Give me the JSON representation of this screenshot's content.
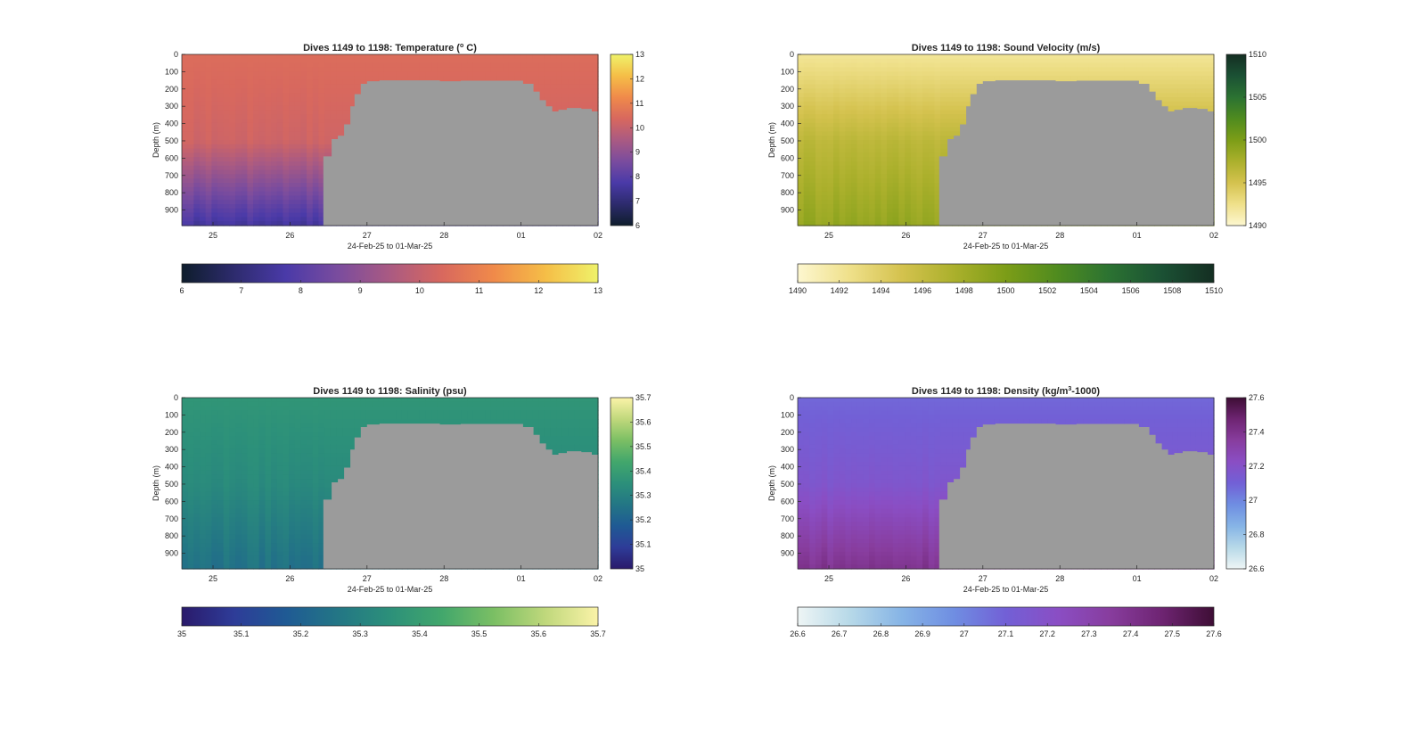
{
  "chart_data": [
    {
      "type": "heatmap",
      "title": "Dives 1149 to 1198: Temperature (°C)",
      "title_parts": [
        "Dives 1149 to 1198: Temperature (",
        "o",
        " C)"
      ],
      "xlabel": "24-Feb-25 to 01-Mar-25",
      "ylabel": "Depth (m)",
      "x_ticks": [
        "25",
        "26",
        "27",
        "28",
        "01",
        "02"
      ],
      "y_ticks": [
        "0",
        "100",
        "200",
        "300",
        "400",
        "500",
        "600",
        "700",
        "800",
        "900"
      ],
      "ylim": [
        0,
        990
      ],
      "colorbar_ticks": [
        "6",
        "7",
        "8",
        "9",
        "10",
        "11",
        "12",
        "13"
      ],
      "clim": [
        6,
        13
      ],
      "colormap": [
        "#0e1d2c",
        "#2d2b6d",
        "#4a3aa8",
        "#7a4c9e",
        "#aa5a82",
        "#d8685e",
        "#f08a4a",
        "#f5be47",
        "#eff26a"
      ],
      "values": {
        "shallow": 10.5,
        "mid": 10.2,
        "deep": 7.6
      },
      "no_data_color": "#9b9b9b"
    },
    {
      "type": "heatmap",
      "title": "Dives 1149 to 1198: Sound Velocity (m/s)",
      "title_parts": [
        "Dives 1149 to 1198: Sound Velocity (m/s)",
        "",
        ""
      ],
      "xlabel": "24-Feb-25 to 01-Mar-25",
      "ylabel": "Depth (m)",
      "x_ticks": [
        "25",
        "26",
        "27",
        "28",
        "01",
        "02"
      ],
      "y_ticks": [
        "0",
        "100",
        "200",
        "300",
        "400",
        "500",
        "600",
        "700",
        "800",
        "900"
      ],
      "ylim": [
        0,
        990
      ],
      "colorbar_ticks": [
        "1490",
        "1492",
        "1494",
        "1496",
        "1498",
        "1500",
        "1502",
        "1504",
        "1506",
        "1508",
        "1510"
      ],
      "side_colorbar_ticks": [
        "1490",
        "1495",
        "1500",
        "1505",
        "1510"
      ],
      "clim": [
        1490,
        1510
      ],
      "colormap": [
        "#fdf7d0",
        "#efe08a",
        "#d4c24e",
        "#abb02c",
        "#7c9d17",
        "#4f8b1f",
        "#2b7232",
        "#1b5134",
        "#142e22"
      ],
      "values": {
        "shallow": 1492.0,
        "mid": 1496.5,
        "deep": 1498.8
      },
      "no_data_color": "#9b9b9b"
    },
    {
      "type": "heatmap",
      "title": "Dives 1149 to 1198: Salinity (psu)",
      "title_parts": [
        "Dives 1149 to 1198: Salinity (psu)",
        "",
        ""
      ],
      "xlabel": "24-Feb-25 to 01-Mar-25",
      "ylabel": "Depth (m)",
      "x_ticks": [
        "25",
        "26",
        "27",
        "28",
        "01",
        "02"
      ],
      "y_ticks": [
        "0",
        "100",
        "200",
        "300",
        "400",
        "500",
        "600",
        "700",
        "800",
        "900"
      ],
      "ylim": [
        0,
        990
      ],
      "colorbar_ticks": [
        "35",
        "35.1",
        "35.2",
        "35.3",
        "35.4",
        "35.5",
        "35.6",
        "35.7"
      ],
      "clim": [
        35,
        35.7
      ],
      "colormap": [
        "#2a1a6b",
        "#2e3c98",
        "#1f5a94",
        "#237685",
        "#2c907a",
        "#42a76c",
        "#7bbf64",
        "#c0d87c",
        "#fbf3a8"
      ],
      "values": {
        "shallow": 35.37,
        "mid": 35.33,
        "deep": 35.25
      },
      "no_data_color": "#9b9b9b"
    },
    {
      "type": "heatmap",
      "title": "Dives 1149 to 1198: Density (kg/m³-1000)",
      "title_parts": [
        "Dives 1149 to 1198: Density (kg/m",
        "3",
        "-1000)"
      ],
      "xlabel": "24-Feb-25 to 01-Mar-25",
      "ylabel": "Depth (m)",
      "x_ticks": [
        "25",
        "26",
        "27",
        "28",
        "01",
        "02"
      ],
      "y_ticks": [
        "0",
        "100",
        "200",
        "300",
        "400",
        "500",
        "600",
        "700",
        "800",
        "900"
      ],
      "ylim": [
        0,
        990
      ],
      "colorbar_ticks": [
        "26.6",
        "26.7",
        "26.8",
        "26.9",
        "27",
        "27.1",
        "27.2",
        "27.3",
        "27.4",
        "27.5",
        "27.6"
      ],
      "side_colorbar_ticks": [
        "26.6",
        "26.8",
        "27",
        "27.2",
        "27.4",
        "27.6"
      ],
      "clim": [
        26.6,
        27.6
      ],
      "colormap": [
        "#eef5f5",
        "#b7d9e8",
        "#86b4e6",
        "#6f8ee2",
        "#7260d6",
        "#8a4ec4",
        "#883d9e",
        "#6e2472",
        "#3e0e35"
      ],
      "values": {
        "shallow": 27.08,
        "mid": 27.17,
        "deep": 27.4
      },
      "no_data_color": "#9b9b9b"
    }
  ]
}
